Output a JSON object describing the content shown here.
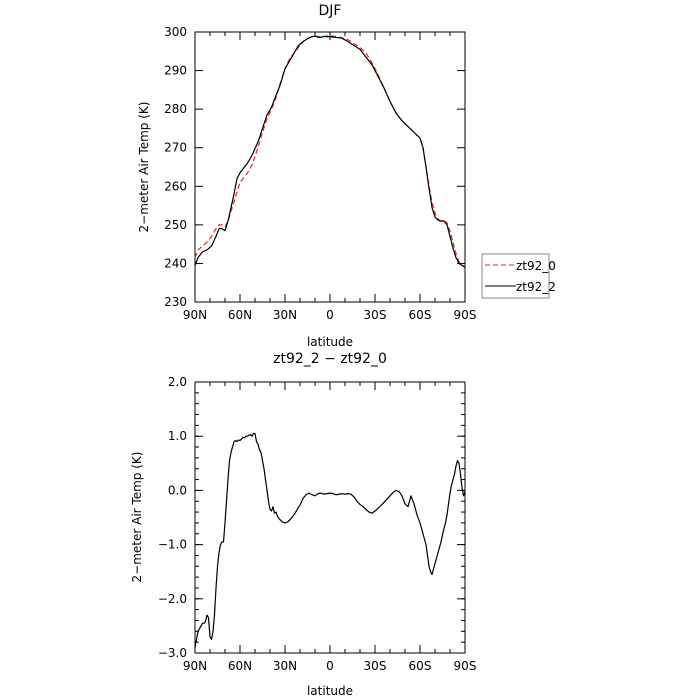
{
  "chart_data": [
    {
      "type": "line",
      "title": "DJF",
      "xlabel": "latitude",
      "ylabel": "2−meter Air Temp (K)",
      "xlim": [
        90,
        -90
      ],
      "ylim": [
        230,
        300
      ],
      "xticks": [
        90,
        60,
        30,
        0,
        -30,
        -60,
        -90
      ],
      "xticklabels": [
        "90N",
        "60N",
        "30N",
        "0",
        "30S",
        "60S",
        "90S"
      ],
      "yticks": [
        230,
        240,
        250,
        260,
        270,
        280,
        290,
        300
      ],
      "yticklabels": [
        "230",
        "240",
        "250",
        "260",
        "270",
        "280",
        "290",
        "300"
      ],
      "legend_position": "right",
      "series": [
        {
          "name": "zt92_0",
          "color": "#e8221e",
          "style": "dashed",
          "x": [
            90,
            88,
            85,
            82,
            79,
            76,
            74,
            72,
            70,
            68,
            66,
            64,
            62,
            60,
            58,
            55,
            52,
            48,
            45,
            42,
            39,
            36,
            33,
            30,
            27,
            24,
            21,
            18,
            15,
            12,
            10,
            7,
            4,
            0,
            -4,
            -8,
            -12,
            -16,
            -20,
            -24,
            -28,
            -32,
            -36,
            -40,
            -44,
            -48,
            -52,
            -56,
            -60,
            -62,
            -64,
            -66,
            -68,
            -70,
            -72,
            -74,
            -76,
            -78,
            -80,
            -82,
            -84,
            -86,
            -88,
            -90
          ],
          "y": [
            241.5,
            243.5,
            244.5,
            245.5,
            247,
            249,
            250,
            250,
            249.5,
            251,
            253.5,
            256,
            258.5,
            261,
            262,
            263.5,
            265.5,
            270,
            274,
            277.5,
            280,
            283,
            287,
            290.5,
            293,
            294.5,
            296,
            297.5,
            298.3,
            298.8,
            298.9,
            298.8,
            298.9,
            299,
            298.8,
            298.5,
            298,
            297,
            296,
            294.5,
            292,
            289,
            285.5,
            282,
            279,
            277,
            275.5,
            274,
            272.5,
            270,
            265,
            260,
            256,
            253,
            251.5,
            251,
            251,
            250.5,
            248.5,
            245.5,
            242.5,
            240.5,
            239.5,
            239
          ]
        },
        {
          "name": "zt92_2",
          "color": "#000000",
          "style": "solid",
          "x": [
            90,
            88,
            85,
            82,
            79,
            76,
            74,
            72,
            70,
            68,
            66,
            64,
            62,
            60,
            58,
            55,
            52,
            48,
            45,
            42,
            39,
            36,
            33,
            30,
            27,
            24,
            21,
            18,
            15,
            12,
            10,
            7,
            4,
            0,
            -4,
            -8,
            -12,
            -16,
            -20,
            -24,
            -28,
            -32,
            -36,
            -40,
            -44,
            -48,
            -52,
            -56,
            -60,
            -62,
            -64,
            -66,
            -68,
            -70,
            -72,
            -74,
            -76,
            -78,
            -80,
            -82,
            -84,
            -86,
            -88,
            -90
          ],
          "y": [
            239.5,
            241.5,
            243,
            243.5,
            244.5,
            247,
            249,
            249,
            248.5,
            251,
            254.5,
            258,
            262,
            263.5,
            264.5,
            266,
            268,
            271.5,
            275,
            278.5,
            280.5,
            283.5,
            286.5,
            290.5,
            292.5,
            294.5,
            296.5,
            297.5,
            298.3,
            298.8,
            298.9,
            298.6,
            298.8,
            298.8,
            298.6,
            298.4,
            297.5,
            296.5,
            295.5,
            293.5,
            291.5,
            288.5,
            285.5,
            282,
            279,
            277,
            275.5,
            274,
            272.5,
            270,
            265,
            259.5,
            254.5,
            252,
            251.2,
            251,
            251,
            250,
            247,
            244,
            241.5,
            240,
            239.5,
            239
          ]
        }
      ]
    },
    {
      "type": "line",
      "title": "zt92_2 − zt92_0",
      "xlabel": "latitude",
      "ylabel": "2−meter Air Temp (K)",
      "xlim": [
        90,
        -90
      ],
      "ylim": [
        -3,
        2
      ],
      "xticks": [
        90,
        60,
        30,
        0,
        -30,
        -60,
        -90
      ],
      "xticklabels": [
        "90N",
        "60N",
        "30N",
        "0",
        "30S",
        "60S",
        "90S"
      ],
      "yticks": [
        -3,
        -2,
        -1,
        0,
        1,
        2
      ],
      "yticklabels": [
        "−3.0",
        "−2.0",
        "−1.0",
        "0.0",
        "1.0",
        "2.0"
      ],
      "series": [
        {
          "color": "#000000",
          "style": "solid",
          "x": [
            90,
            89,
            88,
            86,
            85,
            84,
            83,
            82,
            81,
            80,
            79,
            78,
            77,
            76,
            75,
            74,
            73,
            72,
            71,
            70,
            69,
            68,
            67,
            66,
            65,
            64,
            63,
            62,
            61,
            60,
            59,
            58,
            57,
            56,
            55,
            54,
            53,
            52,
            51,
            50,
            49,
            48,
            47,
            46,
            45,
            44,
            43,
            42,
            41,
            40,
            39,
            38,
            37,
            36,
            35,
            34,
            32,
            30,
            28,
            26,
            24,
            22,
            20,
            18,
            16,
            14,
            12,
            10,
            8,
            6,
            4,
            2,
            0,
            -2,
            -4,
            -6,
            -8,
            -10,
            -12,
            -14,
            -16,
            -18,
            -20,
            -22,
            -24,
            -26,
            -28,
            -30,
            -32,
            -34,
            -36,
            -38,
            -40,
            -42,
            -44,
            -46,
            -48,
            -50,
            -52,
            -54,
            -56,
            -58,
            -60,
            -62,
            -64,
            -65,
            -66,
            -67,
            -68,
            -69,
            -70,
            -71,
            -72,
            -73,
            -74,
            -75,
            -76,
            -77,
            -78,
            -79,
            -80,
            -81,
            -82,
            -83,
            -84,
            -85,
            -86,
            -87,
            -88,
            -89,
            -90
          ],
          "y": [
            -2.9,
            -2.75,
            -2.6,
            -2.5,
            -2.45,
            -2.45,
            -2.42,
            -2.3,
            -2.35,
            -2.7,
            -2.75,
            -2.6,
            -2.3,
            -1.8,
            -1.4,
            -1.15,
            -1.0,
            -0.95,
            -0.95,
            -0.6,
            -0.2,
            0.2,
            0.55,
            0.7,
            0.8,
            0.9,
            0.92,
            0.9,
            0.93,
            0.92,
            0.95,
            0.98,
            0.97,
            1.0,
            1.0,
            1.02,
            1.03,
            1.0,
            1.05,
            1.05,
            0.9,
            0.85,
            0.75,
            0.7,
            0.55,
            0.4,
            0.2,
            0.0,
            -0.2,
            -0.35,
            -0.38,
            -0.3,
            -0.42,
            -0.4,
            -0.48,
            -0.52,
            -0.58,
            -0.6,
            -0.58,
            -0.52,
            -0.45,
            -0.36,
            -0.27,
            -0.15,
            -0.08,
            -0.05,
            -0.08,
            -0.1,
            -0.06,
            -0.05,
            -0.07,
            -0.06,
            -0.05,
            -0.06,
            -0.08,
            -0.07,
            -0.06,
            -0.07,
            -0.06,
            -0.07,
            -0.12,
            -0.2,
            -0.26,
            -0.3,
            -0.35,
            -0.4,
            -0.42,
            -0.38,
            -0.33,
            -0.28,
            -0.22,
            -0.16,
            -0.1,
            -0.04,
            0.0,
            -0.02,
            -0.1,
            -0.25,
            -0.3,
            -0.1,
            -0.25,
            -0.45,
            -0.6,
            -0.8,
            -1.0,
            -1.2,
            -1.4,
            -1.5,
            -1.55,
            -1.45,
            -1.35,
            -1.25,
            -1.15,
            -1.05,
            -0.95,
            -0.82,
            -0.7,
            -0.6,
            -0.45,
            -0.25,
            -0.05,
            0.1,
            0.2,
            0.3,
            0.45,
            0.55,
            0.5,
            0.3,
            0.05,
            -0.1,
            -0.02
          ]
        }
      ]
    }
  ]
}
